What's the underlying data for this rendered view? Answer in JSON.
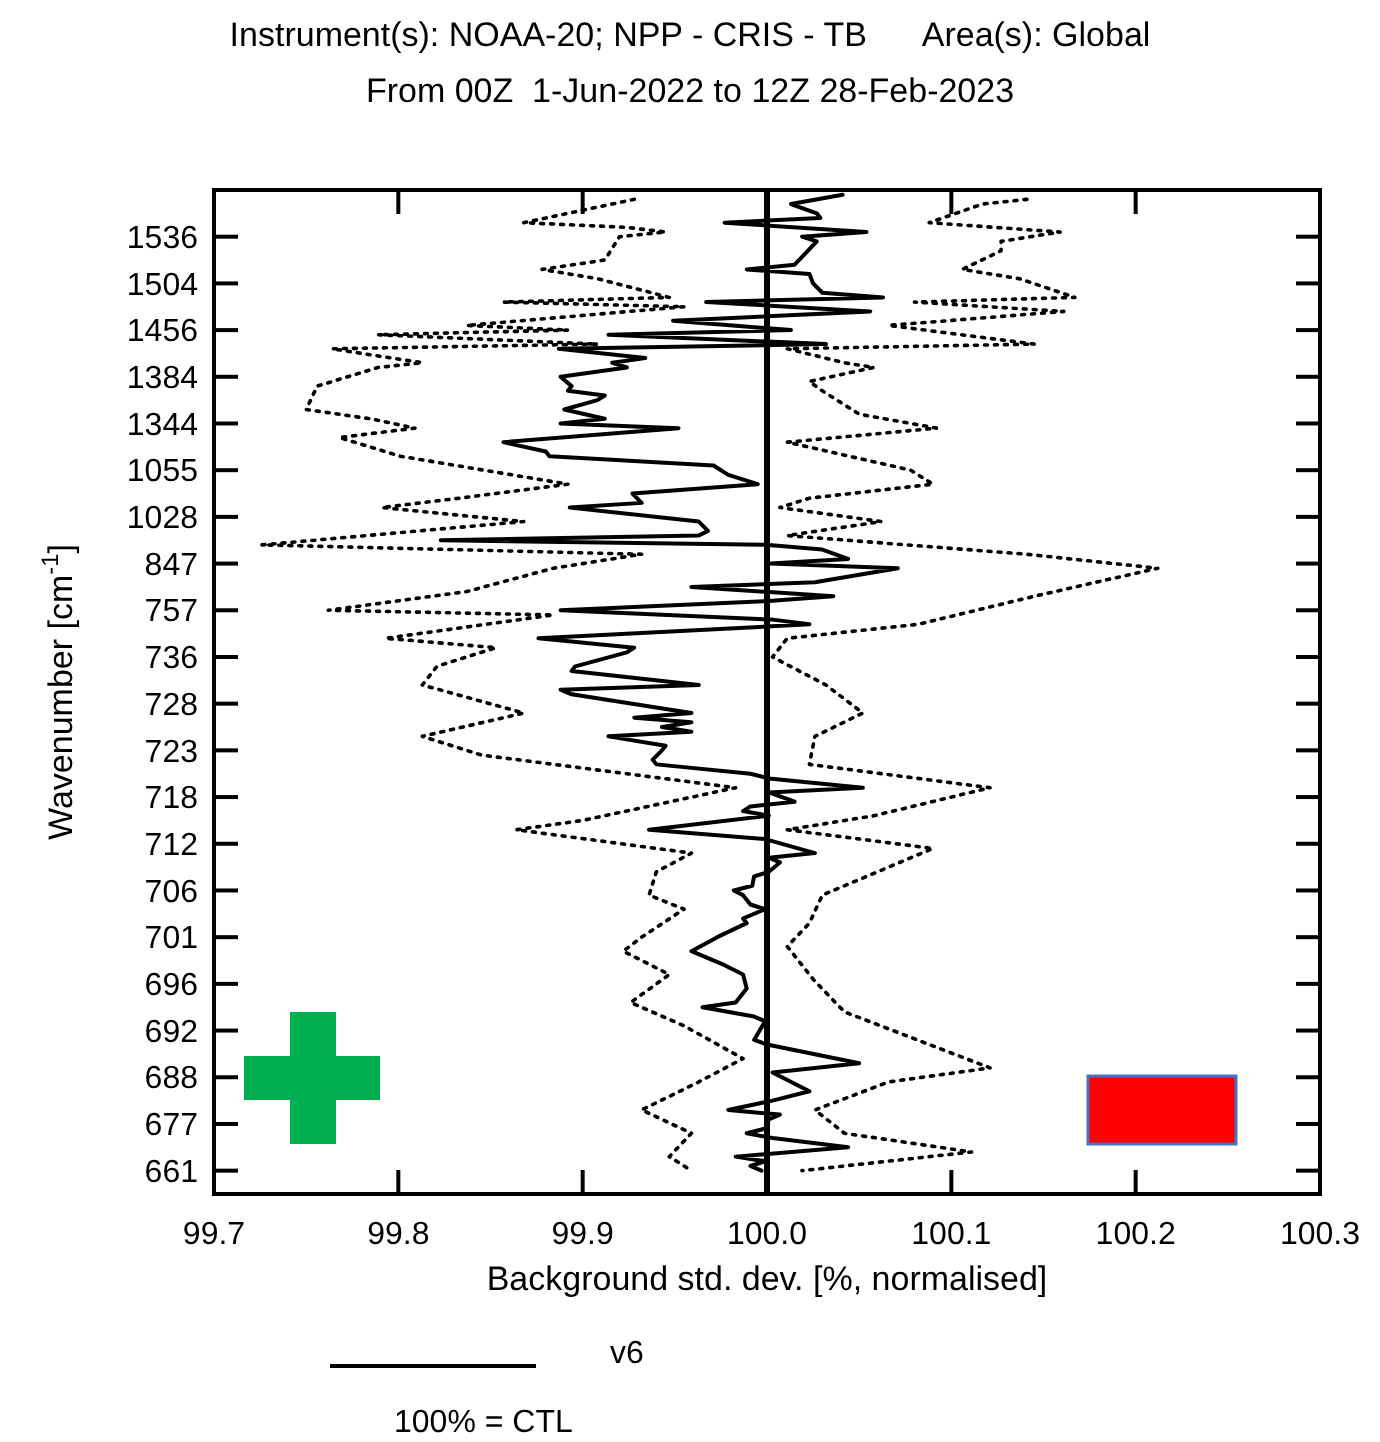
{
  "chart_data": {
    "type": "line",
    "orientation": "horizontal",
    "title": "Instrument(s): NOAA-20; NPP - CRIS - TB      Area(s): Global",
    "subtitle": "From 00Z  1-Jun-2022 to 12Z 28-Feb-2023",
    "xlabel": "Background std. dev. [%, normalised]",
    "ylabel": "Wavenumber [cm$^{-1}$]",
    "xlim": [
      99.7,
      100.3
    ],
    "xticks": [
      99.7,
      99.8,
      99.9,
      {
        "value": 100,
        "label": "100.0"
      },
      100.1,
      100.2,
      100.3
    ],
    "categories": [
      null,
      null,
      null,
      null,
      null,
      null,
      null,
      null,
      null,
      null,
      "1536",
      null,
      null,
      null,
      null,
      null,
      null,
      null,
      null,
      null,
      "1504",
      null,
      null,
      null,
      null,
      null,
      null,
      null,
      null,
      null,
      "1456",
      null,
      null,
      null,
      null,
      null,
      null,
      null,
      null,
      null,
      "1384",
      null,
      null,
      null,
      null,
      null,
      null,
      null,
      null,
      null,
      "1344",
      null,
      null,
      null,
      null,
      null,
      null,
      null,
      null,
      null,
      "1055",
      null,
      null,
      null,
      null,
      null,
      null,
      null,
      null,
      null,
      "1028",
      null,
      null,
      null,
      null,
      null,
      null,
      null,
      null,
      null,
      "847",
      null,
      null,
      null,
      null,
      null,
      null,
      null,
      null,
      null,
      "757",
      null,
      null,
      null,
      null,
      null,
      null,
      null,
      null,
      null,
      "736",
      null,
      null,
      null,
      null,
      null,
      null,
      null,
      null,
      null,
      "728",
      null,
      null,
      null,
      null,
      null,
      null,
      null,
      null,
      null,
      "723",
      null,
      null,
      null,
      null,
      null,
      null,
      null,
      null,
      null,
      "718",
      null,
      null,
      null,
      null,
      null,
      null,
      null,
      null,
      null,
      "712",
      null,
      null,
      null,
      null,
      null,
      null,
      null,
      null,
      null,
      "706",
      null,
      null,
      null,
      null,
      null,
      null,
      null,
      null,
      null,
      "701",
      null,
      null,
      null,
      null,
      null,
      null,
      null,
      null,
      null,
      "696",
      null,
      null,
      null,
      null,
      null,
      null,
      null,
      null,
      null,
      "692",
      null,
      null,
      null,
      null,
      null,
      null,
      null,
      null,
      null,
      "688",
      null,
      null,
      null,
      null,
      null,
      null,
      null,
      null,
      null,
      "677",
      null,
      null,
      null,
      null,
      null,
      null,
      null,
      null,
      null,
      "661",
      null,
      null,
      null,
      null,
      null
    ],
    "grid": false,
    "legend": "bottom",
    "marker": "none",
    "ref_lines": [
      {
        "axis": "x",
        "value": 100,
        "color": "#000000"
      }
    ],
    "annotations": [
      "100% = CTL"
    ],
    "series": [
      {
        "name": "v6",
        "color": "#000000",
        "line_style": "solid",
        "values": [
          null,
          100.041,
          null,
          100.013,
          null,
          100.027,
          100.029,
          99.977,
          null,
          100.054,
          100.019,
          100.027,
          null,
          null,
          null,
          null,
          100.015,
          99.989,
          100.023,
          null,
          100.025,
          null,
          100.03,
          100.063,
          99.967,
          null,
          100.056,
          null,
          99.949,
          null,
          100.013,
          99.914,
          null,
          100.032,
          99.887,
          null,
          99.934,
          99.916,
          99.924,
          null,
          99.888,
          null,
          99.894,
          99.892,
          99.912,
          99.908,
          null,
          99.89,
          null,
          99.912,
          99.888,
          99.952,
          null,
          null,
          99.857,
          null,
          99.88,
          99.882,
          null,
          99.971,
          null,
          99.979,
          null,
          99.995,
          null,
          99.927,
          null,
          99.932,
          99.893,
          null,
          null,
          99.963,
          null,
          99.968,
          99.963,
          99.823,
          100.001,
          100.03,
          null,
          100.044,
          100.002,
          100.071,
          null,
          null,
          100.026,
          99.959,
          null,
          100.036,
          100.001,
          null,
          99.888,
          null,
          100.003,
          100.023,
          null,
          null,
          99.876,
          null,
          99.928,
          99.924,
          null,
          null,
          99.896,
          99.894,
          null,
          null,
          99.963,
          99.888,
          99.894,
          null,
          null,
          null,
          99.959,
          99.928,
          99.959,
          99.943,
          99.959,
          99.914,
          null,
          99.945,
          99.943,
          null,
          99.938,
          99.94,
          null,
          99.991,
          100.001,
          null,
          100.052,
          100.001,
          null,
          100.015,
          99.991,
          99.987,
          100.001,
          null,
          null,
          99.936,
          null,
          99.999,
          null,
          null,
          100.026,
          100.001,
          100.007,
          null,
          100.001,
          99.993,
          null,
          99.992,
          99.982,
          99.987,
          null,
          99.991,
          99.999,
          null,
          99.987,
          99.989,
          null,
          null,
          99.973,
          null,
          null,
          99.959,
          null,
          null,
          99.977,
          null,
          99.987,
          null,
          null,
          99.989,
          null,
          null,
          99.983,
          99.965,
          null,
          99.993,
          99.999,
          null,
          99.996,
          null,
          99.993,
          100.0,
          null,
          null,
          null,
          100.05,
          null,
          100.003,
          null,
          null,
          null,
          100.023,
          null,
          100.003,
          null,
          99.979,
          100.007,
          100.001,
          null,
          99.999,
          99.989,
          100.003,
          null,
          100.044,
          null,
          99.983,
          99.999,
          99.991,
          99.997,
          null,
          null,
          null,
          null,
          null
        ]
      },
      {
        "color": "#000000",
        "line_style": "dotted",
        "values": [
          null,
          null,
          99.928,
          99.916,
          null,
          null,
          null,
          99.868,
          99.924,
          99.945,
          99.92,
          null,
          null,
          null,
          null,
          99.912,
          null,
          99.878,
          null,
          99.908,
          null,
          null,
          null,
          99.947,
          99.857,
          99.955,
          null,
          null,
          null,
          99.837,
          99.892,
          99.789,
          null,
          99.908,
          99.764,
          null,
          null,
          99.813,
          99.789,
          null,
          null,
          null,
          99.756,
          null,
          null,
          null,
          null,
          99.75,
          null,
          99.785,
          null,
          99.809,
          null,
          99.768,
          null,
          null,
          null,
          99.801,
          null,
          null,
          null,
          null,
          null,
          99.892,
          null,
          null,
          99.833,
          null,
          99.791,
          null,
          null,
          99.868,
          null,
          null,
          null,
          null,
          99.726,
          null,
          99.932,
          null,
          null,
          99.884,
          null,
          null,
          null,
          null,
          99.837,
          null,
          null,
          null,
          99.762,
          99.884,
          null,
          null,
          null,
          null,
          99.793,
          null,
          99.853,
          null,
          null,
          null,
          99.821,
          null,
          null,
          null,
          99.813,
          null,
          null,
          null,
          null,
          null,
          99.868,
          null,
          null,
          null,
          null,
          99.813,
          null,
          null,
          null,
          99.845,
          null,
          null,
          null,
          null,
          null,
          null,
          99.983,
          null,
          null,
          null,
          null,
          null,
          null,
          99.9,
          null,
          99.864,
          null,
          null,
          null,
          null,
          99.959,
          null,
          null,
          null,
          99.94,
          null,
          null,
          null,
          null,
          99.936,
          null,
          null,
          99.955,
          null,
          null,
          null,
          null,
          null,
          99.932,
          null,
          null,
          99.922,
          null,
          null,
          null,
          null,
          99.947,
          null,
          null,
          null,
          null,
          null,
          99.926,
          null,
          null,
          null,
          null,
          99.955,
          null,
          null,
          null,
          null,
          null,
          null,
          99.987,
          null,
          null,
          null,
          null,
          99.963,
          null,
          null,
          null,
          null,
          null,
          99.932,
          null,
          null,
          null,
          null,
          99.959,
          null,
          null,
          null,
          null,
          99.947,
          null,
          null,
          99.959,
          null,
          null,
          null,
          null,
          null
        ]
      },
      {
        "color": "#000000",
        "line_style": "dotted",
        "values": [
          null,
          null,
          100.141,
          100.117,
          null,
          null,
          null,
          100.088,
          null,
          100.159,
          null,
          100.127,
          null,
          100.127,
          null,
          null,
          null,
          100.106,
          null,
          100.137,
          null,
          null,
          null,
          100.167,
          100.08,
          null,
          100.161,
          null,
          null,
          100.066,
          null,
          null,
          null,
          100.145,
          100.011,
          null,
          null,
          100.042,
          100.058,
          null,
          null,
          100.023,
          null,
          100.03,
          null,
          null,
          null,
          null,
          100.05,
          null,
          null,
          100.092,
          null,
          null,
          100.011,
          null,
          null,
          null,
          null,
          null,
          100.078,
          null,
          null,
          100.09,
          null,
          null,
          100.023,
          null,
          100.007,
          null,
          null,
          100.062,
          null,
          null,
          100.011,
          null,
          null,
          null,
          100.141,
          null,
          null,
          100.212,
          null,
          null,
          null,
          null,
          null,
          100.145,
          null,
          null,
          null,
          null,
          null,
          100.082,
          null,
          null,
          100.011,
          null,
          null,
          null,
          100.003,
          null,
          null,
          null,
          null,
          null,
          100.032,
          null,
          null,
          null,
          null,
          null,
          100.052,
          null,
          null,
          null,
          null,
          100.026,
          null,
          null,
          null,
          null,
          null,
          100.023,
          null,
          null,
          null,
          null,
          100.121,
          null,
          null,
          null,
          null,
          null,
          100.058,
          null,
          null,
          100.011,
          null,
          null,
          null,
          100.09,
          null,
          null,
          null,
          null,
          null,
          null,
          null,
          null,
          null,
          100.03,
          null,
          null,
          null,
          null,
          null,
          100.023,
          null,
          null,
          null,
          null,
          100.011,
          null,
          null,
          null,
          null,
          null,
          null,
          100.025,
          null,
          null,
          null,
          null,
          null,
          null,
          100.042,
          null,
          null,
          null,
          null,
          null,
          null,
          null,
          null,
          null,
          null,
          null,
          100.121,
          null,
          null,
          100.066,
          null,
          null,
          null,
          null,
          null,
          100.026,
          null,
          null,
          null,
          null,
          100.042,
          null,
          null,
          null,
          100.111,
          null,
          null,
          null,
          100.019,
          null,
          null,
          null,
          null,
          null
        ]
      }
    ]
  }
}
